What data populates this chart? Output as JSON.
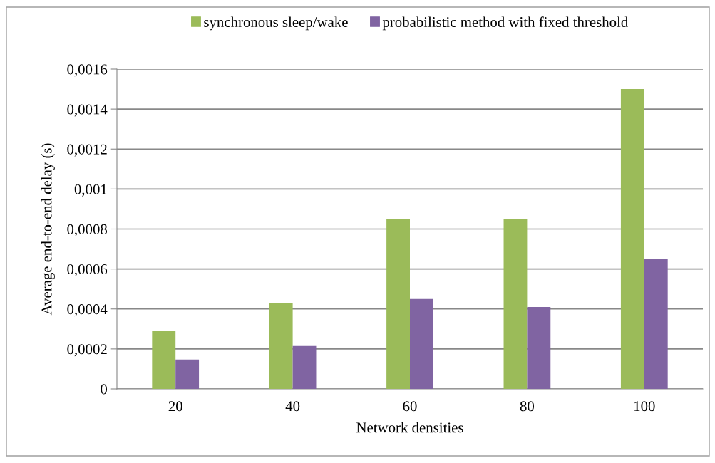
{
  "chart_data": {
    "type": "bar",
    "xlabel": "Network densities",
    "ylabel": "Average end-to-end delay (s)",
    "categories": [
      "20",
      "40",
      "60",
      "80",
      "100"
    ],
    "series": [
      {
        "name": "synchronous sleep/wake",
        "color": "#9bbb59",
        "values": [
          0.00029,
          0.00043,
          0.00085,
          0.00085,
          0.0015
        ]
      },
      {
        "name": "probabilistic method with fixed threshold",
        "color": "#8064a2",
        "values": [
          0.000147,
          0.000215,
          0.00045,
          0.00041,
          0.00065
        ]
      }
    ],
    "ylim": [
      0,
      0.0016
    ],
    "yticks": [
      {
        "value": 0,
        "label": "0"
      },
      {
        "value": 0.0002,
        "label": "0,0002"
      },
      {
        "value": 0.0004,
        "label": "0,0004"
      },
      {
        "value": 0.0006,
        "label": "0,0006"
      },
      {
        "value": 0.0008,
        "label": "0,0008"
      },
      {
        "value": 0.001,
        "label": "0,001"
      },
      {
        "value": 0.0012,
        "label": "0,0012"
      },
      {
        "value": 0.0014,
        "label": "0,0014"
      },
      {
        "value": 0.0016,
        "label": "0,0016"
      }
    ],
    "grid": "y",
    "legend": "top"
  }
}
